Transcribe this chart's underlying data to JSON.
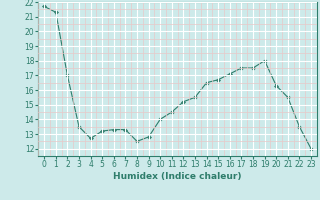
{
  "x": [
    0,
    1,
    2,
    3,
    4,
    5,
    6,
    7,
    8,
    9,
    10,
    11,
    12,
    13,
    14,
    15,
    16,
    17,
    18,
    19,
    20,
    21,
    22,
    23
  ],
  "y": [
    21.7,
    21.3,
    17.0,
    13.5,
    12.7,
    13.2,
    13.3,
    13.3,
    12.5,
    12.8,
    14.0,
    14.5,
    15.2,
    15.5,
    16.5,
    16.7,
    17.1,
    17.5,
    17.5,
    18.0,
    16.3,
    15.5,
    13.5,
    12.0
  ],
  "line_color": "#2e7d6b",
  "marker": "D",
  "marker_size": 2.0,
  "bg_color": "#cdeaea",
  "grid_color": "#ffffff",
  "grid_minor_color": "#e8c8c8",
  "xlabel": "Humidex (Indice chaleur)",
  "ylim": [
    12,
    22
  ],
  "xlim": [
    -0.5,
    23.5
  ],
  "yticks": [
    12,
    13,
    14,
    15,
    16,
    17,
    18,
    19,
    20,
    21,
    22
  ],
  "xticks": [
    0,
    1,
    2,
    3,
    4,
    5,
    6,
    7,
    8,
    9,
    10,
    11,
    12,
    13,
    14,
    15,
    16,
    17,
    18,
    19,
    20,
    21,
    22,
    23
  ],
  "tick_label_size": 5.5,
  "xlabel_size": 6.5,
  "linewidth": 0.8
}
